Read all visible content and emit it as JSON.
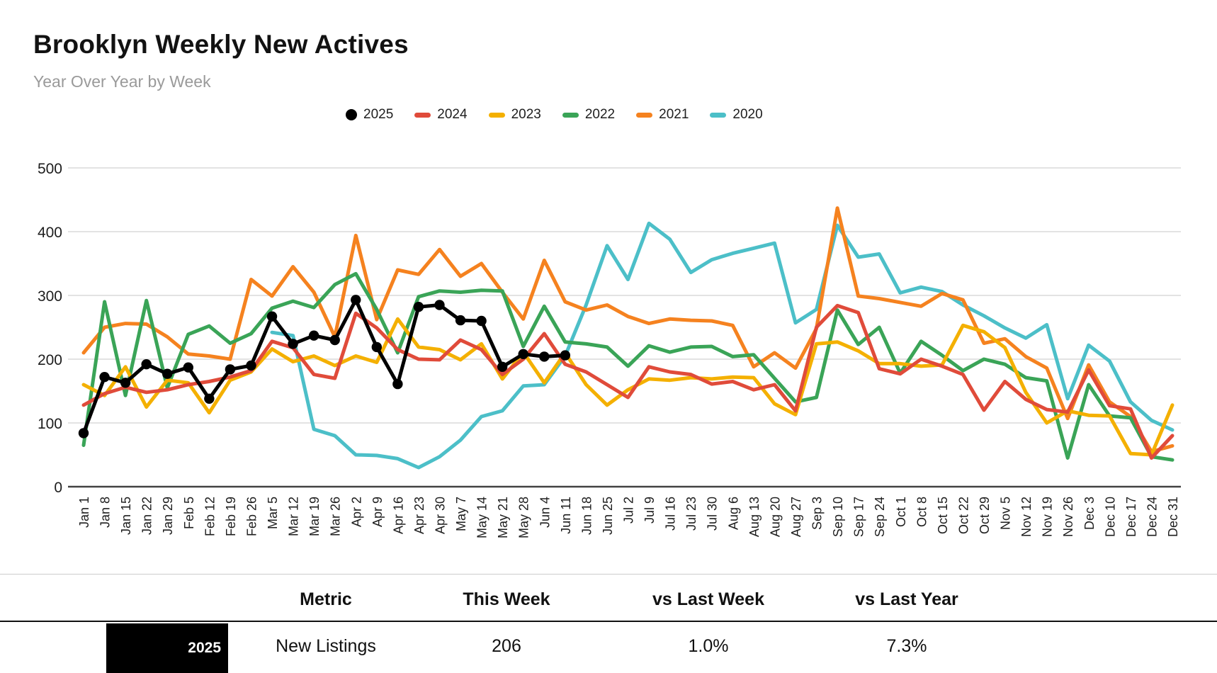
{
  "title": "Brooklyn Weekly New Actives",
  "subtitle": "Year Over Year by Week",
  "chart_data": {
    "type": "line",
    "title": "Brooklyn Weekly New Actives",
    "subtitle": "Year Over Year by Week",
    "grid": true,
    "legend_position": "top-center",
    "ylim": [
      0,
      500
    ],
    "yticks": [
      0,
      100,
      200,
      300,
      400,
      500
    ],
    "x_labels": [
      "Jan 1",
      "Jan 8",
      "Jan 15",
      "Jan 22",
      "Jan 29",
      "Feb 5",
      "Feb 12",
      "Feb 19",
      "Feb 26",
      "Mar 5",
      "Mar 12",
      "Mar 19",
      "Mar 26",
      "Apr 2",
      "Apr 9",
      "Apr 16",
      "Apr 23",
      "Apr 30",
      "May 7",
      "May 14",
      "May 21",
      "May 28",
      "Jun 4",
      "Jun 11",
      "Jun 18",
      "Jun 25",
      "Jul 2",
      "Jul 9",
      "Jul 16",
      "Jul 23",
      "Jul 30",
      "Aug 6",
      "Aug 13",
      "Aug 20",
      "Aug 27",
      "Sep 3",
      "Sep 10",
      "Sep 17",
      "Sep 24",
      "Oct 1",
      "Oct 8",
      "Oct 15",
      "Oct 22",
      "Oct 29",
      "Nov 5",
      "Nov 12",
      "Nov 19",
      "Nov 26",
      "Dec 3",
      "Dec 10",
      "Dec 17",
      "Dec 24",
      "Dec 31"
    ],
    "series": [
      {
        "name": "2020",
        "color": "#4CBFC8",
        "marker": "dash",
        "values": [
          null,
          null,
          null,
          null,
          null,
          null,
          null,
          null,
          null,
          242,
          237,
          90,
          80,
          50,
          49,
          44,
          30,
          47,
          73,
          110,
          119,
          158,
          160,
          205,
          285,
          378,
          325,
          413,
          388,
          336,
          356,
          366,
          374,
          382,
          257,
          278,
          410,
          360,
          365,
          304,
          313,
          306,
          285,
          268,
          249,
          233,
          254,
          138,
          222,
          197,
          133,
          104,
          89
        ]
      },
      {
        "name": "2021",
        "color": "#F5821F",
        "marker": "dash",
        "values": [
          210,
          250,
          256,
          255,
          235,
          208,
          205,
          200,
          325,
          299,
          345,
          305,
          235,
          394,
          262,
          340,
          333,
          372,
          330,
          350,
          305,
          263,
          355,
          290,
          277,
          285,
          267,
          256,
          263,
          261,
          260,
          253,
          188,
          210,
          186,
          248,
          437,
          299,
          295,
          289,
          283,
          303,
          293,
          225,
          232,
          204,
          186,
          107,
          191,
          133,
          110,
          55,
          64
        ]
      },
      {
        "name": "2022",
        "color": "#3AA457",
        "marker": "dash",
        "values": [
          65,
          290,
          143,
          292,
          155,
          239,
          252,
          225,
          240,
          280,
          291,
          281,
          317,
          334,
          278,
          210,
          298,
          307,
          305,
          308,
          307,
          220,
          283,
          227,
          224,
          219,
          189,
          221,
          211,
          219,
          220,
          204,
          207,
          170,
          133,
          140,
          277,
          223,
          250,
          178,
          228,
          206,
          182,
          200,
          192,
          171,
          166,
          45,
          160,
          111,
          108,
          47,
          42
        ]
      },
      {
        "name": "2023",
        "color": "#F4B000",
        "marker": "dash",
        "values": [
          160,
          143,
          188,
          125,
          167,
          163,
          116,
          167,
          180,
          216,
          196,
          205,
          190,
          205,
          195,
          263,
          219,
          215,
          199,
          224,
          169,
          211,
          163,
          210,
          160,
          128,
          152,
          169,
          167,
          171,
          169,
          172,
          171,
          130,
          113,
          224,
          227,
          213,
          193,
          193,
          189,
          191,
          253,
          243,
          218,
          148,
          100,
          119,
          112,
          111,
          52,
          50,
          128
        ]
      },
      {
        "name": "2024",
        "color": "#E04B3A",
        "marker": "dash",
        "values": [
          128,
          146,
          156,
          148,
          152,
          160,
          165,
          172,
          182,
          228,
          218,
          176,
          170,
          272,
          249,
          215,
          200,
          199,
          230,
          215,
          176,
          200,
          240,
          192,
          180,
          160,
          140,
          188,
          180,
          176,
          161,
          165,
          152,
          160,
          119,
          250,
          284,
          273,
          185,
          177,
          200,
          189,
          176,
          120,
          165,
          137,
          121,
          117,
          183,
          127,
          122,
          45,
          80
        ]
      },
      {
        "name": "2025",
        "color": "#000000",
        "marker": "circle",
        "values": [
          84,
          172,
          163,
          192,
          177,
          187,
          138,
          184,
          190,
          267,
          224,
          237,
          230,
          293,
          219,
          161,
          282,
          285,
          261,
          260,
          188,
          208,
          204,
          206,
          null,
          null,
          null,
          null,
          null,
          null,
          null,
          null,
          null,
          null,
          null,
          null,
          null,
          null,
          null,
          null,
          null,
          null,
          null,
          null,
          null,
          null,
          null,
          null,
          null,
          null,
          null,
          null,
          null
        ]
      }
    ],
    "legend_order": [
      "2025",
      "2024",
      "2023",
      "2022",
      "2021",
      "2020"
    ]
  },
  "table": {
    "headers": [
      "Metric",
      "This Week",
      "vs Last Week",
      "vs Last Year"
    ],
    "rows": [
      {
        "year": "2025",
        "metric": "New Listings",
        "this_week": "206",
        "vs_last_week": "1.0%",
        "vs_last_year": "7.3%"
      }
    ]
  }
}
